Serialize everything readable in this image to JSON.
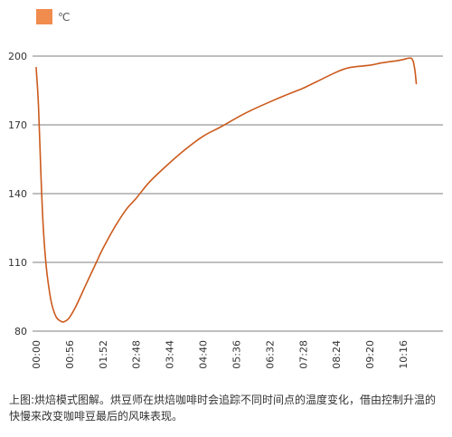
{
  "chart_data": {
    "type": "line",
    "legend": {
      "label": "℃",
      "color": "#F08C4E",
      "placement": "top-left"
    },
    "line_color": "#CC5A1C",
    "ylim": [
      80,
      200
    ],
    "yticks": [
      80,
      110,
      140,
      170,
      200
    ],
    "grid": true,
    "x_ticks": [
      "00:00",
      "00:56",
      "01:52",
      "02:48",
      "03:44",
      "04:40",
      "05:36",
      "06:32",
      "07:28",
      "08:24",
      "09:20",
      "10:16"
    ],
    "series": [
      {
        "x": [
          "00:00",
          "00:04",
          "00:08",
          "00:12",
          "00:17",
          "00:23",
          "00:28",
          "00:34",
          "00:40",
          "00:45",
          "00:50",
          "00:56",
          "01:07",
          "01:23",
          "01:41",
          "01:52",
          "02:11",
          "02:31",
          "02:48",
          "03:10",
          "03:38",
          "04:09",
          "04:40",
          "05:09",
          "05:36",
          "05:58",
          "06:32",
          "06:59",
          "07:28",
          "07:52",
          "08:24",
          "08:46",
          "09:20",
          "09:39",
          "10:06",
          "10:16",
          "10:30",
          "10:35",
          "10:38"
        ],
        "y": [
          195,
          178,
          148,
          125,
          108,
          96,
          90,
          86,
          84.5,
          84,
          84.5,
          86,
          91,
          100,
          110,
          116,
          125,
          133,
          138,
          145,
          152,
          159,
          165,
          169,
          173,
          176,
          180,
          183,
          186,
          189,
          193,
          195,
          196,
          197,
          198,
          198.5,
          199,
          195,
          188
        ]
      }
    ]
  },
  "caption": "上图:烘焙模式图解。烘豆师在烘焙咖啡时会追踪不同时间点的温度变化，借由控制升温的快慢来改变咖啡豆最后的风味表现。"
}
